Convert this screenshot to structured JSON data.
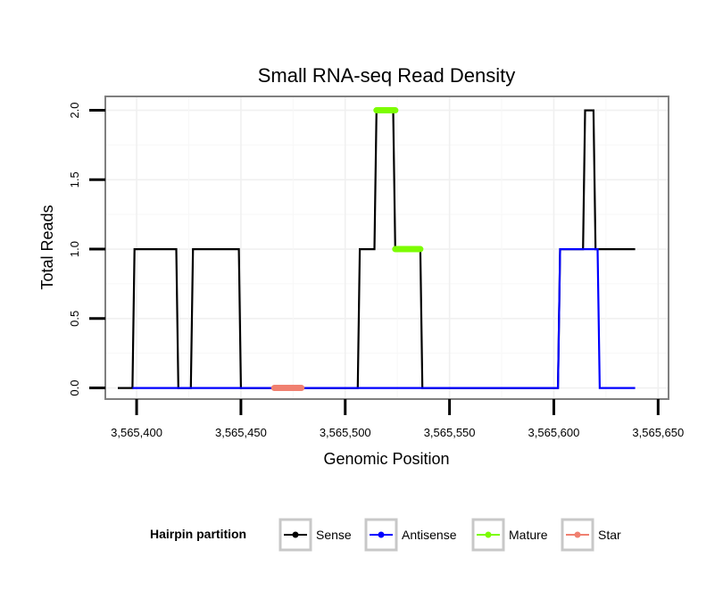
{
  "chart_data": {
    "type": "line",
    "title": "Small RNA-seq Read Density",
    "xlabel": "Genomic Position",
    "ylabel": "Total Reads",
    "xlim": [
      3565385,
      3565655
    ],
    "ylim": [
      -0.08,
      2.1
    ],
    "x_ticks": [
      3565400,
      3565450,
      3565500,
      3565550,
      3565600,
      3565650
    ],
    "x_tick_labels": [
      "3,565,400",
      "3,565,450",
      "3,565,500",
      "3,565,550",
      "3,565,600",
      "3,565,650"
    ],
    "y_ticks": [
      0.0,
      0.5,
      1.0,
      1.5,
      2.0
    ],
    "y_tick_labels": [
      "0.0",
      "0.5",
      "1.0",
      "1.5",
      "2.0"
    ],
    "grid": true,
    "legend": {
      "title": "Hairpin partition",
      "position": "bottom",
      "entries": [
        {
          "label": "Sense",
          "color": "#000000"
        },
        {
          "label": "Antisense",
          "color": "#0000ff"
        },
        {
          "label": "Mature",
          "color": "#7cfc00"
        },
        {
          "label": "Star",
          "color": "#f08070"
        }
      ]
    },
    "series": [
      {
        "name": "Sense",
        "color": "#000000",
        "x": [
          3565391,
          3565398,
          3565399,
          3565419,
          3565420,
          3565426,
          3565427,
          3565449,
          3565450,
          3565506,
          3565507,
          3565514,
          3565515,
          3565523,
          3565524,
          3565536,
          3565537,
          3565602,
          3565603,
          3565614,
          3565615,
          3565619,
          3565620,
          3565639
        ],
        "y": [
          0,
          0,
          1,
          1,
          0,
          0,
          1,
          1,
          0,
          0,
          1,
          1,
          2,
          2,
          1,
          1,
          0,
          0,
          1,
          1,
          2,
          2,
          1,
          1
        ]
      },
      {
        "name": "Antisense",
        "color": "#0000ff",
        "x": [
          3565398,
          3565602,
          3565603,
          3565621,
          3565622,
          3565639
        ],
        "y": [
          0,
          0,
          1,
          1,
          0,
          0
        ]
      },
      {
        "name": "Mature",
        "color": "#7cfc00",
        "segments": [
          {
            "x": [
              3565515,
              3565524
            ],
            "y": 2
          },
          {
            "x": [
              3565524,
              3565536
            ],
            "y": 1
          }
        ]
      },
      {
        "name": "Star",
        "color": "#f08070",
        "segments": [
          {
            "x": [
              3565466,
              3565479
            ],
            "y": 0
          }
        ]
      }
    ]
  }
}
